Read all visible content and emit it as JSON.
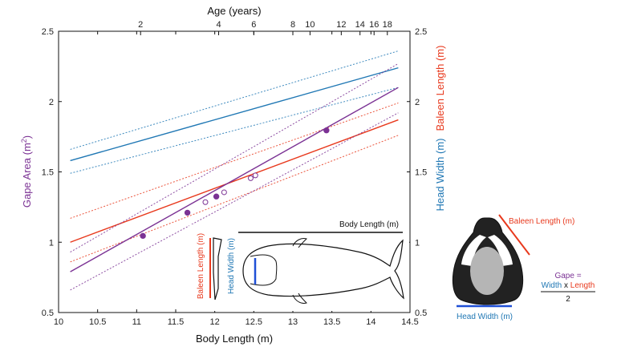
{
  "chart_data": {
    "type": "line",
    "xlabel": "Body Length (m)",
    "top_xlabel": "Age (years)",
    "ylabel_left": "Gape Area (m²)",
    "ylabel_right_1": "Head Width (m)",
    "ylabel_right_2": "Baleen Length (m)",
    "xlim": [
      10,
      14.5
    ],
    "ylim": [
      0.5,
      2.5
    ],
    "x_ticks": [
      10,
      10.5,
      11,
      11.5,
      12,
      12.5,
      13,
      13.5,
      14,
      14.5
    ],
    "y_ticks": [
      0.5,
      1,
      1.5,
      2,
      2.5
    ],
    "top_ticks": [
      {
        "label": "2",
        "x": 11.05
      },
      {
        "label": "4",
        "x": 12.05
      },
      {
        "label": "6",
        "x": 12.5
      },
      {
        "label": "8",
        "x": 13.0
      },
      {
        "label": "10",
        "x": 13.22
      },
      {
        "label": "12",
        "x": 13.62
      },
      {
        "label": "14",
        "x": 13.86
      },
      {
        "label": "16",
        "x": 14.04
      },
      {
        "label": "18",
        "x": 14.21
      }
    ],
    "series": [
      {
        "key": "head",
        "color": "#1f77b4",
        "x": [
          10.15,
          14.35
        ],
        "y": [
          1.58,
          2.24
        ],
        "lower": [
          1.49,
          2.1
        ],
        "upper": [
          1.66,
          2.36
        ]
      },
      {
        "key": "baleen",
        "color": "#e8391d",
        "x": [
          10.15,
          14.35
        ],
        "y": [
          1.0,
          1.87
        ],
        "lower": [
          0.86,
          1.76
        ],
        "upper": [
          1.17,
          1.99
        ]
      },
      {
        "key": "gape",
        "color": "#7b3294",
        "x": [
          10.15,
          14.35
        ],
        "y": [
          0.79,
          2.1
        ],
        "lower": [
          0.66,
          1.92
        ],
        "upper": [
          0.93,
          2.27
        ]
      }
    ],
    "gape_points_filled": [
      {
        "x": 11.08,
        "y": 1.045
      },
      {
        "x": 11.65,
        "y": 1.21
      },
      {
        "x": 12.02,
        "y": 1.325
      },
      {
        "x": 13.43,
        "y": 1.795
      }
    ],
    "gape_points_open": [
      {
        "x": 11.88,
        "y": 1.285
      },
      {
        "x": 12.12,
        "y": 1.355
      },
      {
        "x": 12.46,
        "y": 1.455
      },
      {
        "x": 12.52,
        "y": 1.475
      }
    ]
  },
  "inset": {
    "body_length_label": "Body Length (m)",
    "baleen_length_label": "Baleen Length (m)",
    "head_width_label": "Head Width (m)"
  },
  "diagram": {
    "baleen_length_label": "Baleen Length (m)",
    "head_width_label": "Head Width (m)",
    "formula_title": "Gape =",
    "formula_width": "Width",
    "formula_times": "x",
    "formula_length": "Length",
    "formula_divisor": "2"
  },
  "colors": {
    "gape": "#7b3294",
    "head": "#1f77b4",
    "baleen": "#e8391d"
  }
}
